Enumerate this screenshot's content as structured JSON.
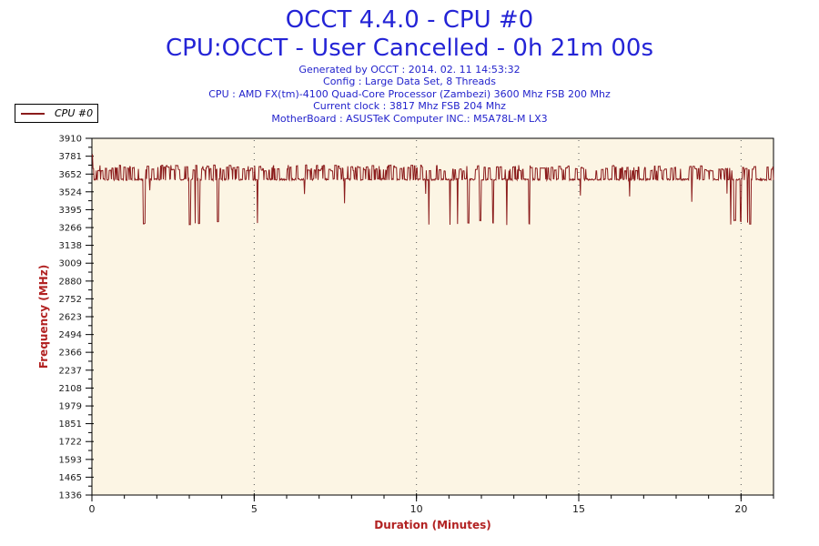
{
  "header": {
    "title_line1": "OCCT 4.4.0 - CPU #0",
    "title_line2": "CPU:OCCT - User Cancelled - 0h 21m 00s",
    "title_color": "#2424d6",
    "info_color": "#2323cc",
    "info_lines": [
      "Generated by OCCT : 2014. 02. 11 14:53:32",
      "Config : Large Data Set, 8 Threads",
      "CPU : AMD FX(tm)-4100 Quad-Core Processor (Zambezi) 3600 Mhz FSB 200 Mhz",
      "Current clock : 3817 Mhz FSB 204 Mhz",
      "MotherBoard : ASUSTeK Computer INC.: M5A78L-M LX3"
    ]
  },
  "legend": {
    "series_label": "CPU #0",
    "line_color": "#8b1c1c"
  },
  "chart_data": {
    "type": "line",
    "title": "OCCT 4.4.0 - CPU #0",
    "xlabel": "Duration (Minutes)",
    "ylabel": "Frequency (MHz)",
    "x_range": [
      0,
      21
    ],
    "y_range": [
      1336,
      3910
    ],
    "x_major_ticks": [
      0,
      5,
      10,
      15,
      20
    ],
    "x_minor_tick_step": 1,
    "y_major_ticks": [
      3910,
      3781,
      3652,
      3524,
      3395,
      3266,
      3138,
      3009,
      2880,
      2752,
      2623,
      2494,
      2366,
      2237,
      2108,
      1979,
      1851,
      1722,
      1593,
      1465,
      1336
    ],
    "gridlines": {
      "vertical_at": [
        5,
        10,
        15,
        20
      ],
      "horizontal": false
    },
    "plot_bg": "#fcf5e4",
    "axis_color": "#000000",
    "grid_color": "#555555",
    "tick_label_color": "#1a1a1a",
    "axis_label_color": "#b22222",
    "series": [
      {
        "name": "CPU #0",
        "color": "#8b1c1c",
        "sample_interval_seconds": 1,
        "duration_minutes": 21,
        "levels_mhz": {
          "start_spike": 3792,
          "turbo_high": 3700,
          "baseline": 3614,
          "shallow_dip": 3520,
          "deep_dip": 3300
        },
        "generator": {
          "seed": 20140211,
          "n_samples": 1261,
          "start_spike": [
            3792,
            2
          ],
          "base": [
            3607,
            3619
          ],
          "high": [
            3674,
            3717
          ],
          "low": [
            3284,
            3320
          ],
          "shallow": [
            3440,
            3560
          ],
          "high_start_prob": 0.25,
          "high_run": [
            1,
            4
          ],
          "dip_run": [
            1,
            3
          ],
          "shallow_prob": 0.008,
          "dip_clusters": [
            [
              0.4,
              1.65,
              0.09
            ],
            [
              2.75,
              4.05,
              0.07
            ],
            [
              4.95,
              5.15,
              0.07
            ],
            [
              7.2,
              7.45,
              0.07
            ],
            [
              10.35,
              13.65,
              0.05
            ],
            [
              14.85,
              15.2,
              0.06
            ],
            [
              17.9,
              18.15,
              0.06
            ],
            [
              19.3,
              21.0,
              0.05
            ]
          ]
        }
      }
    ]
  }
}
